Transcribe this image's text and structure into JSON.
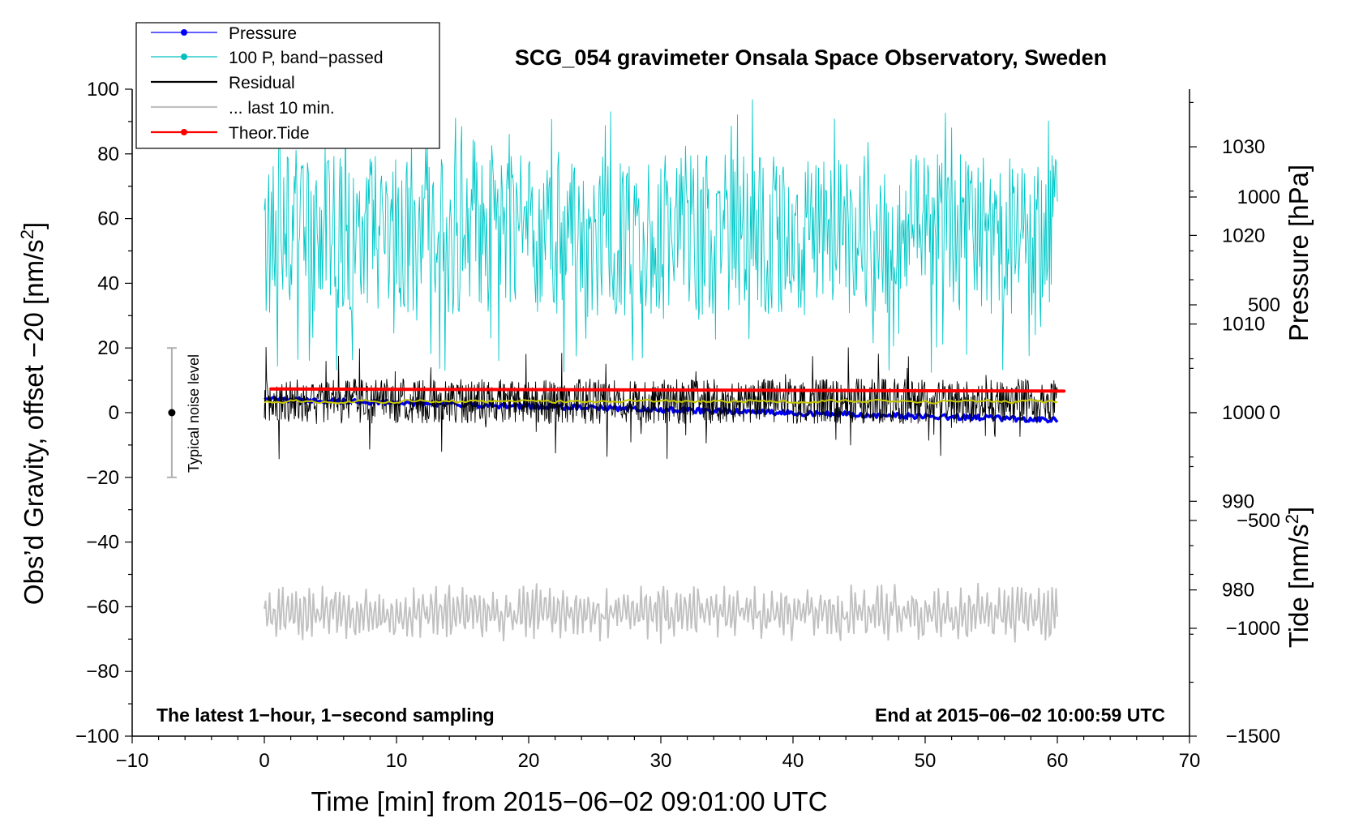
{
  "chart_data": {
    "type": "line",
    "title": "SCG_054 gravimeter Onsala Space Observatory, Sweden",
    "xlabel": "Time [min] from 2015−06−02 09:01:00 UTC",
    "ylabel_left_main": "Obs’d Gravity, offset −20 [nm/s",
    "ylabel_right_pressure": "Pressure [hPa]",
    "ylabel_right_tide_main": "Tide [nm/s",
    "unit_exponent": "2",
    "unit_close": "]",
    "xlim": [
      -10,
      70
    ],
    "ylim_left": [
      -100,
      100
    ],
    "pressure_lim": [
      963.5,
      1036.5
    ],
    "tide_lim": [
      -1500,
      1500
    ],
    "x_ticks": [
      -10,
      0,
      10,
      20,
      30,
      40,
      50,
      60,
      70
    ],
    "x_tick_labels": [
      "−10",
      "0",
      "10",
      "20",
      "30",
      "40",
      "50",
      "60",
      "70"
    ],
    "y_left_ticks": [
      100,
      80,
      60,
      40,
      20,
      0,
      -20,
      -40,
      -60,
      -80,
      -100
    ],
    "y_left_tick_labels": [
      "100",
      "80",
      "60",
      "40",
      "20",
      "0",
      "−20",
      "−40",
      "−60",
      "−80",
      "−100"
    ],
    "pressure_ticks": [
      1030,
      1020,
      1010,
      1000,
      990,
      980
    ],
    "pressure_tick_labels": [
      "1030",
      "1020",
      "1010",
      "1000",
      "990",
      "980"
    ],
    "tide_ticks": [
      1000,
      500,
      0,
      -500,
      -1000,
      -1500
    ],
    "tide_tick_labels": [
      "1000",
      "500",
      "0",
      "−500",
      "−1000",
      "−1500"
    ],
    "legend": [
      {
        "label": "Pressure",
        "color": "#0000ff",
        "marker": true
      },
      {
        "label": "100 P, band−passed",
        "color": "#00c0c0",
        "marker": true
      },
      {
        "label": "Residual",
        "color": "#000000",
        "marker": false
      },
      {
        "label": "... last 10 min.",
        "color": "#c0c0c0",
        "marker": false
      },
      {
        "label": "Theor.Tide",
        "color": "#ff0000",
        "marker": true
      }
    ],
    "annotations": {
      "noise_label": "Typical noise level",
      "bottom_left": "The latest 1−hour, 1−second sampling",
      "bottom_right": "End at 2015−06−02 10:00:59 UTC"
    },
    "noise_bar": {
      "x": -7,
      "center": 0,
      "half_range": 20
    },
    "series": [
      {
        "name": "Pressure",
        "axis": "pressure",
        "unit": "hPa",
        "color": "#0000ff",
        "x_range": [
          0,
          60
        ],
        "start": 1001.5,
        "end": 999.2,
        "jitter": 0.6
      },
      {
        "name": "100 P, band−passed",
        "axis": "left",
        "unit": "nm/s2",
        "color": "#00c8c8",
        "x_range": [
          0,
          60
        ],
        "mean": 55,
        "amplitude": 25,
        "peak_max": 97,
        "trough_min": 12
      },
      {
        "name": "Residual",
        "axis": "left",
        "unit": "nm/s2",
        "color": "#000000",
        "x_range": [
          0,
          60
        ],
        "mean": 3.5,
        "amplitude": 7,
        "max": 23,
        "min": -15
      },
      {
        "name": "Residual smoothed",
        "axis": "left",
        "unit": "nm/s2",
        "color": "#c8c800",
        "x_range": [
          0,
          60
        ],
        "mean": 3.5,
        "amplitude": 0.8
      },
      {
        "name": "... last 10 min.",
        "axis": "left",
        "unit": "nm/s2",
        "color": "#c0c0c0",
        "x_range": [
          0,
          60
        ],
        "mean": -62,
        "amplitude": 8,
        "max": -46,
        "min": -79
      },
      {
        "name": "Theor.Tide",
        "axis": "tide",
        "unit": "nm/s2",
        "color": "#ff0000",
        "x_range": [
          0.5,
          60.5
        ],
        "start": 110,
        "end": 100
      }
    ]
  }
}
